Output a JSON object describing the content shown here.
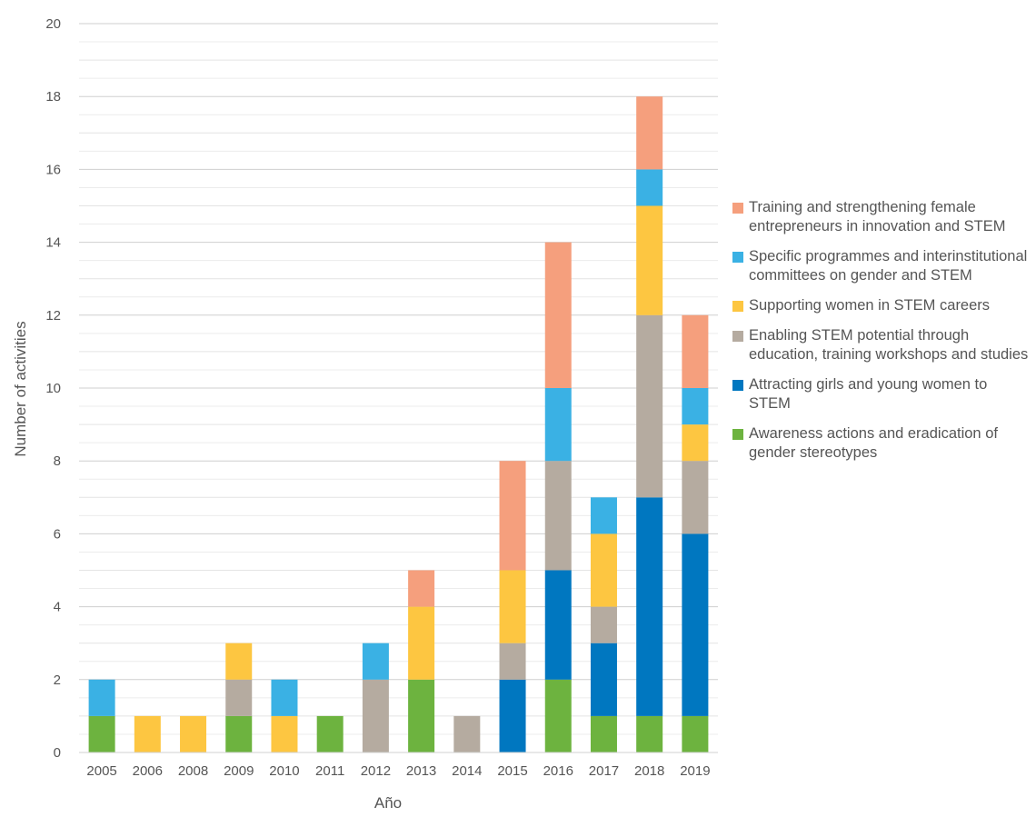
{
  "chart_data": {
    "type": "bar",
    "stacked": true,
    "title": "",
    "xlabel": "Año",
    "ylabel": "Number of activities",
    "ylim": [
      0,
      20
    ],
    "yticks": [
      0,
      2,
      4,
      6,
      8,
      10,
      12,
      14,
      16,
      18,
      20
    ],
    "ytick_labels": [
      "0",
      "2",
      "4",
      "6",
      "8",
      "10",
      "12",
      "14",
      "16",
      "18",
      "20"
    ],
    "grid": true,
    "legend_position": "right",
    "categories": [
      "2005",
      "2006",
      "2008",
      "2009",
      "2010",
      "2011",
      "2012",
      "2013",
      "2014",
      "2015",
      "2016",
      "2017",
      "2018",
      "2019"
    ],
    "series": [
      {
        "name": "Awareness actions and eradication of gender stereotypes",
        "color": "#6db33f",
        "values": [
          1,
          0,
          0,
          1,
          0,
          1,
          0,
          2,
          0,
          0,
          2,
          1,
          1,
          1
        ]
      },
      {
        "name": "Attracting girls and young women to STEM",
        "color": "#0077c0",
        "values": [
          0,
          0,
          0,
          0,
          0,
          0,
          0,
          0,
          0,
          2,
          3,
          2,
          6,
          5
        ]
      },
      {
        "name": "Enabling STEM potential through education, training workshops and studies",
        "color": "#b5aba0",
        "values": [
          0,
          0,
          0,
          1,
          0,
          0,
          2,
          0,
          1,
          1,
          3,
          1,
          5,
          2
        ]
      },
      {
        "name": "Supporting women in STEM careers",
        "color": "#fdc641",
        "values": [
          0,
          1,
          1,
          1,
          1,
          0,
          0,
          2,
          0,
          2,
          0,
          2,
          3,
          1
        ]
      },
      {
        "name": "Specific programmes and interinstitutional committees on gender and STEM",
        "color": "#3ab1e4",
        "values": [
          1,
          0,
          0,
          0,
          1,
          0,
          1,
          0,
          0,
          0,
          2,
          1,
          1,
          1
        ]
      },
      {
        "name": "Training and strengthening female entrepreneurs in innovation and STEM",
        "color": "#f59f7d",
        "values": [
          0,
          0,
          0,
          0,
          0,
          0,
          0,
          1,
          0,
          3,
          4,
          0,
          2,
          2
        ]
      }
    ],
    "legend_order": [
      5,
      4,
      3,
      2,
      1,
      0
    ]
  }
}
